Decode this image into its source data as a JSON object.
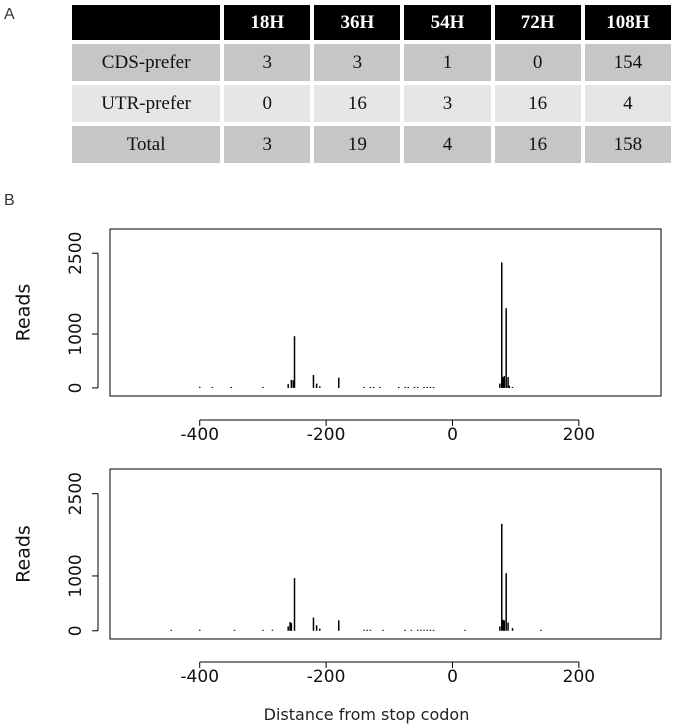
{
  "panel_a_label": "A",
  "panel_b_label": "B",
  "table": {
    "headers": [
      "",
      "18H",
      "36H",
      "54H",
      "72H",
      "108H"
    ],
    "rows": [
      [
        "CDS-prefer",
        "3",
        "3",
        "1",
        "0",
        "154"
      ],
      [
        "UTR-prefer",
        "0",
        "16",
        "3",
        "16",
        "4"
      ],
      [
        "Total",
        "3",
        "19",
        "4",
        "16",
        "158"
      ]
    ]
  },
  "chart_data": [
    {
      "type": "bar",
      "xlabel": "",
      "ylabel": "Reads",
      "xlim": [
        -520,
        330
      ],
      "ylim": [
        0,
        2800
      ],
      "xticks": [
        "-400",
        "-200",
        "0",
        "200"
      ],
      "yticks": [
        "0",
        "1000",
        "2500"
      ],
      "x": [
        -400,
        -380,
        -350,
        -300,
        -260,
        -255,
        -252,
        -250,
        -220,
        -215,
        -210,
        -180,
        -140,
        -130,
        -125,
        -115,
        -85,
        -75,
        -70,
        -60,
        -55,
        -45,
        -40,
        -35,
        -30,
        75,
        78,
        80,
        82,
        85,
        88,
        90,
        95
      ],
      "values": [
        5,
        5,
        5,
        10,
        70,
        150,
        140,
        960,
        240,
        80,
        30,
        190,
        10,
        10,
        10,
        10,
        10,
        10,
        10,
        10,
        10,
        10,
        10,
        10,
        10,
        80,
        2330,
        200,
        220,
        1480,
        200,
        40,
        10
      ]
    },
    {
      "type": "bar",
      "xlabel": "Distance from stop codon",
      "ylabel": "Reads",
      "xlim": [
        -520,
        330
      ],
      "ylim": [
        0,
        2800
      ],
      "xticks": [
        "-400",
        "-200",
        "0",
        "200"
      ],
      "yticks": [
        "0",
        "1000",
        "2500"
      ],
      "x": [
        -445,
        -400,
        -345,
        -300,
        -285,
        -260,
        -257,
        -255,
        -250,
        -220,
        -215,
        -210,
        -180,
        -140,
        -135,
        -130,
        -110,
        -75,
        -65,
        -55,
        -50,
        -45,
        -40,
        -35,
        -30,
        20,
        75,
        78,
        80,
        82,
        85,
        88,
        95,
        140
      ],
      "values": [
        5,
        5,
        5,
        10,
        10,
        80,
        160,
        140,
        960,
        240,
        100,
        40,
        190,
        10,
        10,
        10,
        10,
        10,
        10,
        10,
        10,
        10,
        10,
        10,
        10,
        10,
        80,
        1950,
        200,
        190,
        1050,
        150,
        50,
        10
      ]
    }
  ]
}
